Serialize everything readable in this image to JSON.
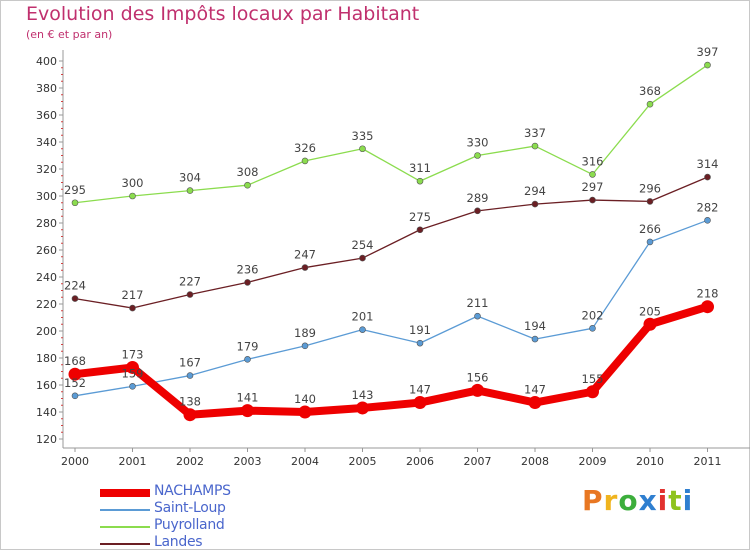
{
  "header": {
    "title": "Evolution des Impôts locaux par Habitant",
    "subtitle": "(en € et par an)"
  },
  "logo": {
    "text": "Proxiti",
    "letters": [
      {
        "ch": "P",
        "color": "#e87722"
      },
      {
        "ch": "r",
        "color": "#f0b41e"
      },
      {
        "ch": "o",
        "color": "#3cae3c"
      },
      {
        "ch": "x",
        "color": "#2f7fd0"
      },
      {
        "ch": "i",
        "color": "#e2322f"
      },
      {
        "ch": "t",
        "color": "#8fc31f"
      },
      {
        "ch": "i",
        "color": "#2f7fd0"
      }
    ]
  },
  "chart_data": {
    "type": "line",
    "title": "Evolution des Impôts locaux par Habitant",
    "subtitle": "(en € et par an)",
    "xlabel": "",
    "ylabel": "",
    "x": [
      "2000",
      "2001",
      "2002",
      "2003",
      "2004",
      "2005",
      "2006",
      "2007",
      "2008",
      "2009",
      "2010",
      "2011"
    ],
    "ylim": [
      120,
      400
    ],
    "yticks": [
      120,
      140,
      160,
      180,
      200,
      220,
      240,
      260,
      280,
      300,
      320,
      340,
      360,
      380,
      400
    ],
    "grid": false,
    "legend_position": "bottom-left",
    "series": [
      {
        "name": "NACHAMPS",
        "color": "#ee0000",
        "values": [
          168,
          173,
          138,
          141,
          140,
          143,
          147,
          156,
          147,
          155,
          205,
          218
        ]
      },
      {
        "name": "Saint-Loup",
        "color": "#5b9bd5",
        "values": [
          152,
          159,
          167,
          179,
          189,
          201,
          191,
          211,
          194,
          202,
          266,
          282
        ]
      },
      {
        "name": "Puyrolland",
        "color": "#8bdc4e",
        "values": [
          295,
          300,
          304,
          308,
          326,
          335,
          311,
          330,
          337,
          316,
          368,
          397
        ]
      },
      {
        "name": "Landes",
        "color": "#6b1f24",
        "values": [
          224,
          217,
          227,
          236,
          247,
          254,
          275,
          289,
          294,
          297,
          296,
          314
        ]
      }
    ]
  }
}
